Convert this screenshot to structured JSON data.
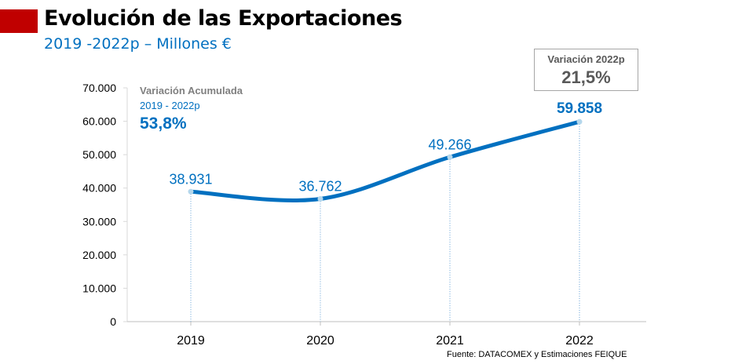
{
  "header": {
    "title": "Evolución de las Exportaciones",
    "subtitle": "2019 -2022p  – Millones €"
  },
  "annotations": {
    "accumulated": {
      "label": "Variación Acumulada",
      "period": "2019 - 2022p",
      "value": "53,8%"
    },
    "yearly": {
      "label": "Variación 2022p",
      "value": "21,5%"
    }
  },
  "source": "Fuente: DATACOMEX y Estimaciones FEIQUE",
  "chart_data": {
    "type": "line",
    "categories": [
      "2019",
      "2020",
      "2021",
      "2022"
    ],
    "values": [
      38931,
      36762,
      49266,
      59858
    ],
    "data_labels": [
      "38.931",
      "36.762",
      "49.266",
      "59.858"
    ],
    "ylim": [
      0,
      70000
    ],
    "yticks": [
      0,
      10000,
      20000,
      30000,
      40000,
      50000,
      60000,
      70000
    ],
    "ytick_labels": [
      "0",
      "10.000",
      "20.000",
      "30.000",
      "40.000",
      "50.000",
      "60.000",
      "70.000"
    ],
    "smooth": true,
    "grid": false,
    "colors": {
      "line": "#0070c0",
      "marker": "#b4d7ec",
      "drop_lines": "#5b9bd5",
      "label": "#0070c0"
    }
  }
}
